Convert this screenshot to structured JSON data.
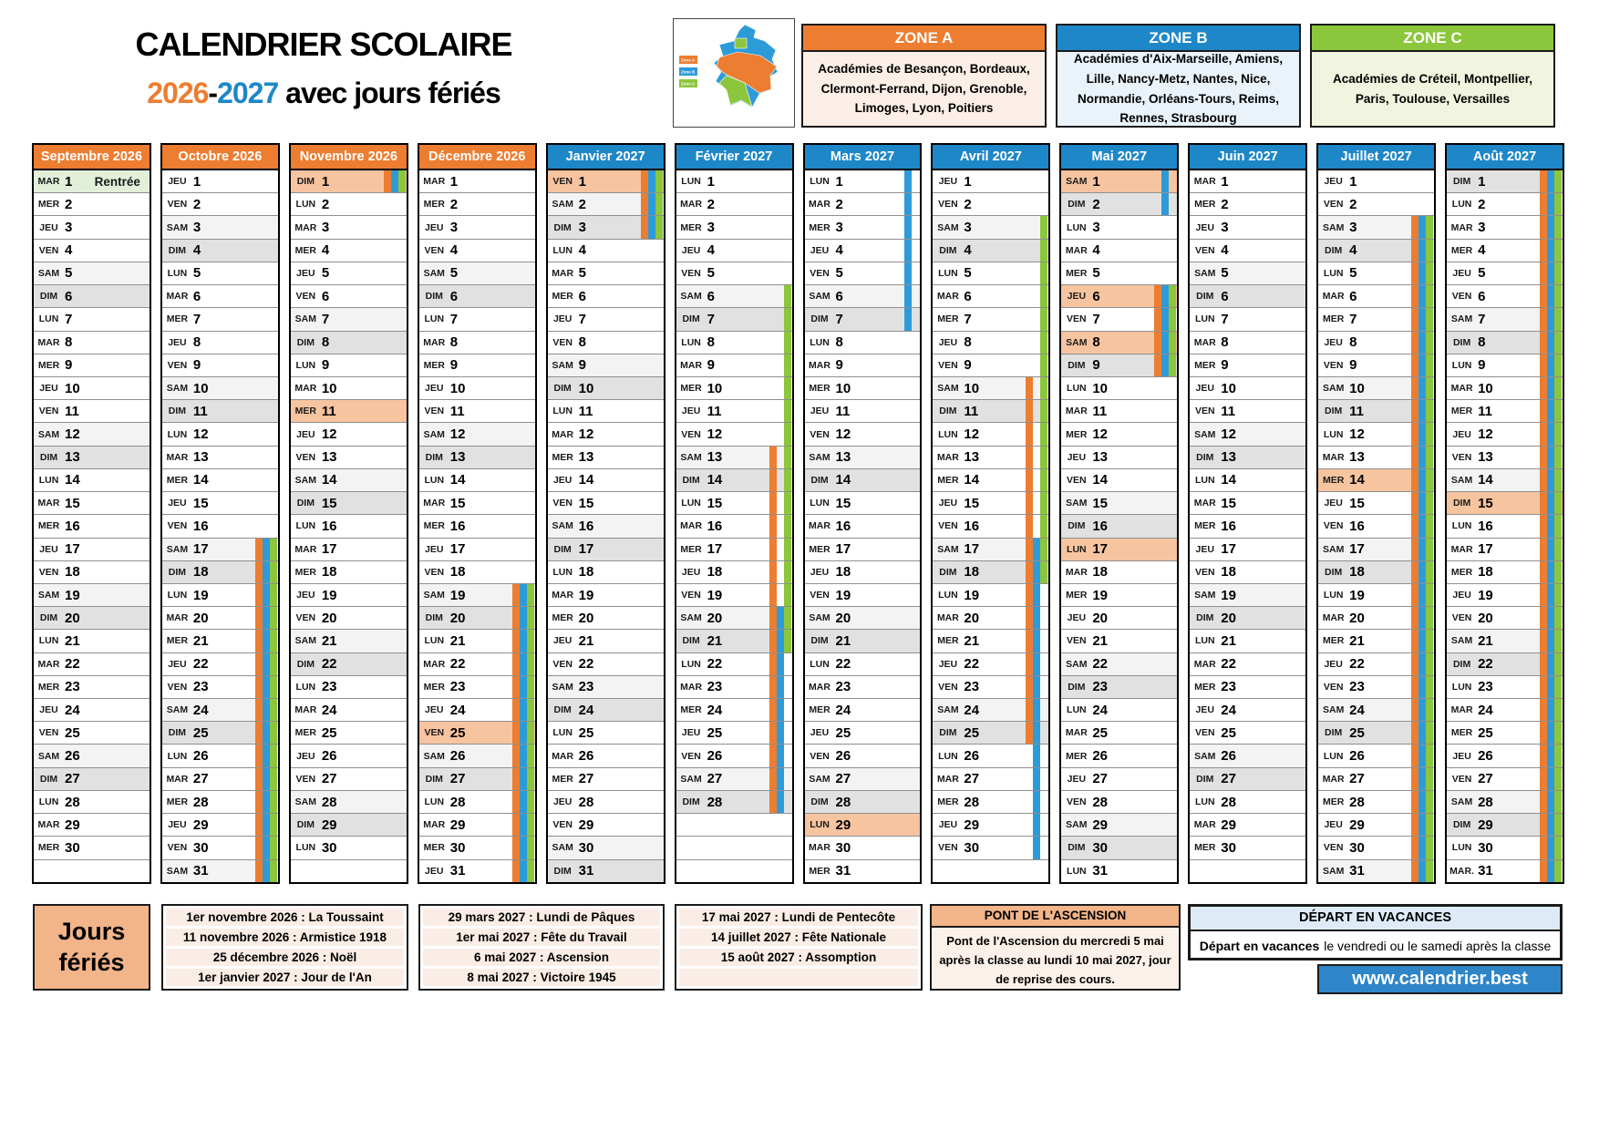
{
  "title": {
    "line1": "CALENDRIER SCOLAIRE",
    "year1": "2026",
    "separator": "-",
    "year2": "2027",
    "suffix": " avec jours fériés"
  },
  "colors": {
    "zone_a_orange": "#ED7D31",
    "zone_b_blue": "#1E87C8",
    "zone_c_green": "#8CC63C",
    "bar_blue": "#2E9BD9",
    "ferie_highlight": "#F7C4A0",
    "rentree_highlight": "#E2EFD9",
    "samedi_bg": "#F3F3F3",
    "dimanche_bg": "#E1E1E1",
    "header_2026": "#ED7D31",
    "header_2027": "#1E87C8"
  },
  "zones": [
    {
      "label": "ZONE A",
      "academies": "Académies de Besançon, Bordeaux, Clermont-Ferrand, Dijon, Grenoble, Limoges, Lyon, Poitiers"
    },
    {
      "label": "ZONE B",
      "academies": "Académies d'Aix-Marseille, Amiens, Lille, Nancy-Metz, Nantes, Nice, Normandie, Orléans-Tours, Reims, Rennes, Strasbourg"
    },
    {
      "label": "ZONE C",
      "academies": "Académies de Créteil, Montpellier, Paris, Toulouse, Versailles"
    }
  ],
  "map": {
    "legend": [
      {
        "label": "Zone A",
        "color": "#ED7D31"
      },
      {
        "label": "Zone B",
        "color": "#2E9BD9"
      },
      {
        "label": "Zone C",
        "color": "#8CC63C"
      }
    ]
  },
  "calendar": {
    "day_abbrs": [
      "LUN",
      "MAR",
      "MER",
      "JEU",
      "VEN",
      "SAM",
      "DIM"
    ],
    "row_slots": 31
  },
  "months": [
    {
      "name": "Septembre 2026",
      "era": "2026",
      "first_dow": 1,
      "num_days": 30,
      "rentree_day": 1,
      "rentree_label": "Rentrée",
      "ferie_days": [],
      "bars": {}
    },
    {
      "name": "Octobre 2026",
      "era": "2026",
      "first_dow": 3,
      "num_days": 31,
      "ferie_days": [],
      "bars": {
        "A": [
          [
            17,
            31
          ]
        ],
        "B": [
          [
            17,
            31
          ]
        ],
        "C": [
          [
            17,
            31
          ]
        ]
      }
    },
    {
      "name": "Novembre 2026",
      "era": "2026",
      "first_dow": 6,
      "num_days": 30,
      "ferie_days": [
        1,
        11
      ],
      "bars": {
        "A": [
          [
            1,
            1
          ]
        ],
        "B": [
          [
            1,
            1
          ]
        ],
        "C": [
          [
            1,
            1
          ]
        ]
      }
    },
    {
      "name": "Décembre 2026",
      "era": "2026",
      "first_dow": 1,
      "num_days": 31,
      "ferie_days": [
        25
      ],
      "bars": {
        "A": [
          [
            19,
            31
          ]
        ],
        "B": [
          [
            19,
            31
          ]
        ],
        "C": [
          [
            19,
            31
          ]
        ]
      }
    },
    {
      "name": "Janvier 2027",
      "era": "2027",
      "first_dow": 4,
      "num_days": 31,
      "ferie_days": [
        1
      ],
      "bars": {
        "A": [
          [
            1,
            3
          ]
        ],
        "B": [
          [
            1,
            3
          ]
        ],
        "C": [
          [
            1,
            3
          ]
        ]
      }
    },
    {
      "name": "Février 2027",
      "era": "2027",
      "first_dow": 0,
      "num_days": 28,
      "ferie_days": [],
      "bars": {
        "A": [
          [
            13,
            28
          ]
        ],
        "B": [
          [
            20,
            28
          ]
        ],
        "C": [
          [
            6,
            21
          ]
        ]
      }
    },
    {
      "name": "Mars 2027",
      "era": "2027",
      "first_dow": 0,
      "num_days": 31,
      "ferie_days": [
        29
      ],
      "bars": {
        "B": [
          [
            1,
            7
          ]
        ]
      }
    },
    {
      "name": "Avril 2027",
      "era": "2027",
      "first_dow": 3,
      "num_days": 30,
      "ferie_days": [],
      "bars": {
        "A": [
          [
            10,
            25
          ]
        ],
        "B": [
          [
            17,
            30
          ]
        ],
        "C": [
          [
            3,
            18
          ]
        ]
      }
    },
    {
      "name": "Mai 2027",
      "era": "2027",
      "first_dow": 5,
      "num_days": 31,
      "ferie_days": [
        1,
        6,
        8,
        17
      ],
      "bars": {
        "A": [
          [
            6,
            9
          ]
        ],
        "B": [
          [
            1,
            2
          ],
          [
            6,
            9
          ]
        ],
        "C": [
          [
            6,
            9
          ]
        ]
      }
    },
    {
      "name": "Juin 2027",
      "era": "2027",
      "first_dow": 1,
      "num_days": 30,
      "ferie_days": [],
      "bars": {}
    },
    {
      "name": "Juillet 2027",
      "era": "2027",
      "first_dow": 3,
      "num_days": 31,
      "ferie_days": [
        14
      ],
      "bars": {
        "A": [
          [
            3,
            31
          ]
        ],
        "B": [
          [
            3,
            31
          ]
        ],
        "C": [
          [
            3,
            31
          ]
        ]
      }
    },
    {
      "name": "Août 2027",
      "era": "2027",
      "first_dow": 6,
      "num_days": 31,
      "ferie_days": [
        15
      ],
      "abbr_overrides": {
        "31": "MAR."
      },
      "bars": {
        "A": [
          [
            1,
            31
          ]
        ],
        "B": [
          [
            1,
            31
          ]
        ],
        "C": [
          [
            1,
            31
          ]
        ]
      }
    }
  ],
  "footer": {
    "jours_feries_word1": "Jours",
    "jours_feries_word2": "fériés",
    "feries_columns": [
      [
        "1er novembre 2026 : La Toussaint",
        "11 novembre 2026 : Armistice 1918",
        "25 décembre 2026 : Noël",
        "1er janvier 2027 : Jour de l'An"
      ],
      [
        "29 mars 2027 : Lundi de Pâques",
        "1er mai 2027 : Fête du Travail",
        "6 mai 2027 : Ascension",
        "8 mai 2027 : Victoire 1945"
      ],
      [
        "17 mai 2027 : Lundi de Pentecôte",
        "14 juillet 2027 : Fête Nationale",
        "15 août 2027 : Assomption",
        ""
      ]
    ],
    "pont": {
      "title": "PONT DE L'ASCENSION",
      "body": "Pont de l'Ascension du mercredi 5 mai après la classe au lundi 10 mai 2027, jour de reprise des cours."
    },
    "depart": {
      "title": "DÉPART EN VACANCES",
      "body_bold": "Départ en vacances",
      "body_rest": "le vendredi ou le samedi après la classe"
    },
    "website": "www.calendrier.best"
  }
}
